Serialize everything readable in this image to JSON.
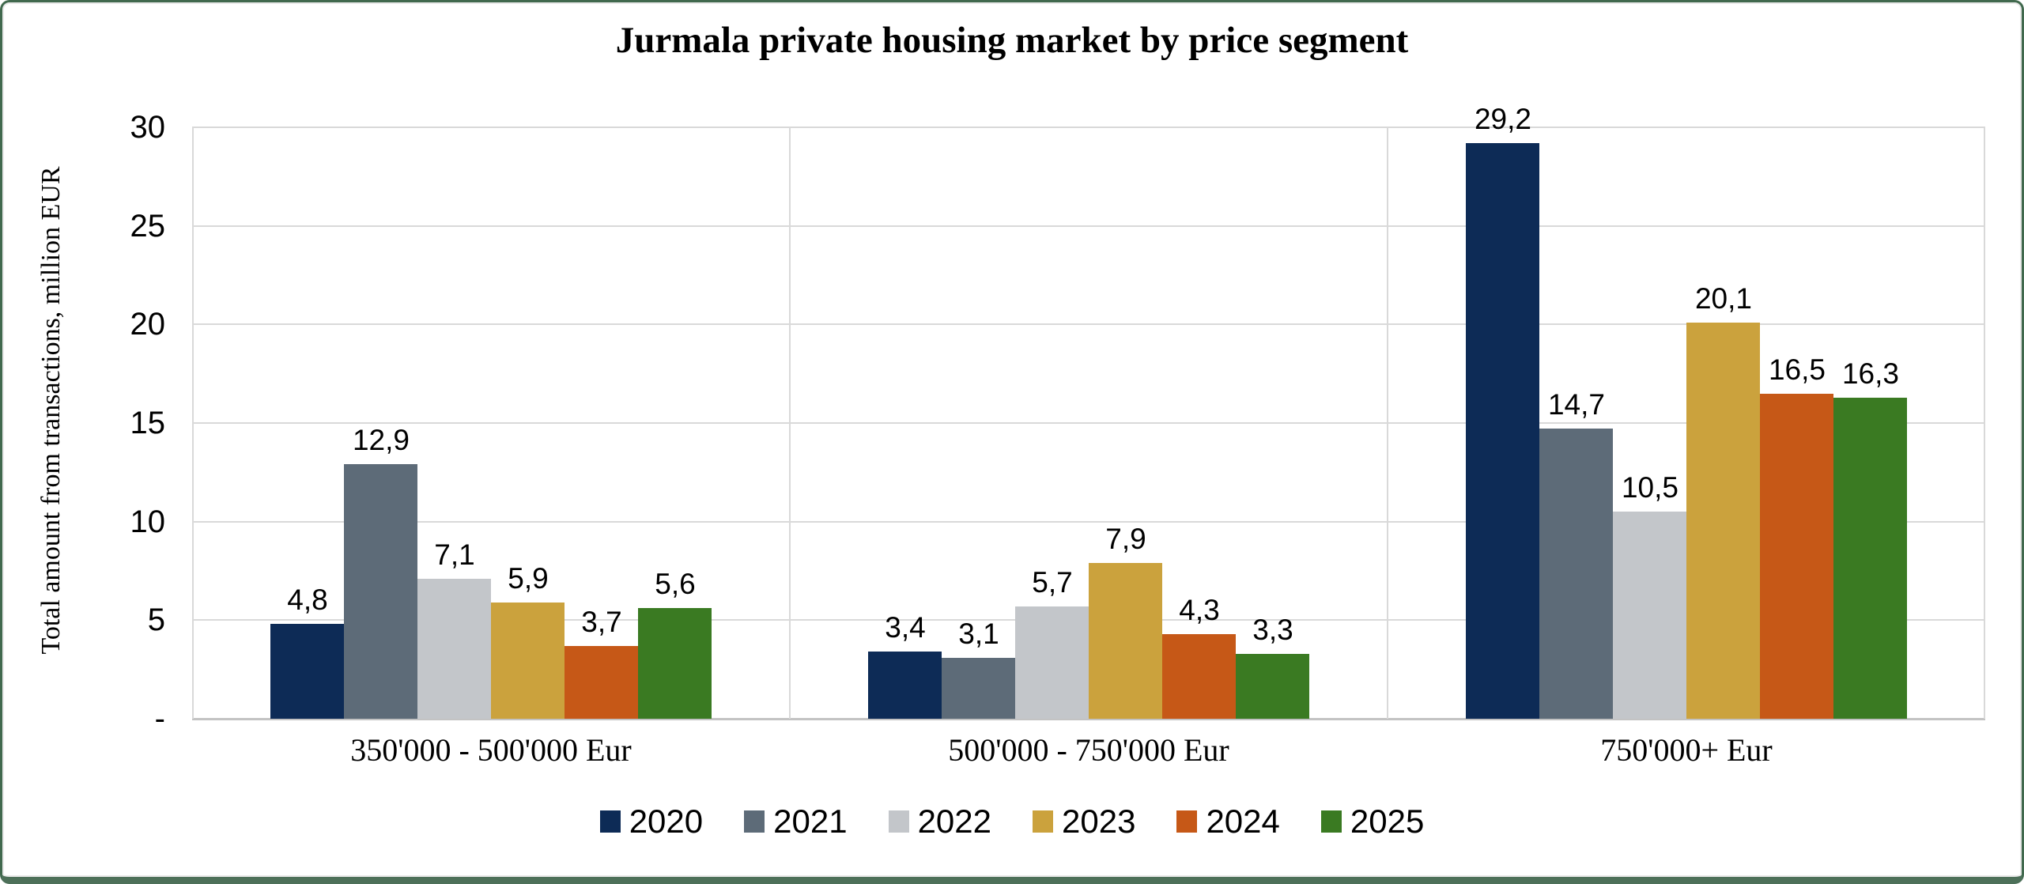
{
  "frame": {
    "border_color": "#41694e",
    "border_bottom_color": "#4d7059",
    "inner_line_color": "#e9e9e9",
    "background": "#ffffff"
  },
  "palette": {
    "gridline": "#d9d9d9",
    "axis_line": "#c3c3c3",
    "text": "#000000"
  },
  "chart_data": {
    "type": "bar",
    "title": "Jurmala private housing market by price segment",
    "ylabel": "Total amount from transactions, million EUR",
    "xlabel": "",
    "categories": [
      "350'000 - 500'000 Eur",
      "500'000 - 750'000 Eur",
      "750'000+ Eur"
    ],
    "series": [
      {
        "name": "2020",
        "color": "#0d2b56",
        "values": [
          4.8,
          3.4,
          29.2
        ],
        "labels": [
          "4,8",
          "3,4",
          "29,2"
        ]
      },
      {
        "name": "2021",
        "color": "#5d6b78",
        "values": [
          12.9,
          3.1,
          14.7
        ],
        "labels": [
          "12,9",
          "3,1",
          "14,7"
        ]
      },
      {
        "name": "2022",
        "color": "#c3c6ca",
        "values": [
          7.1,
          5.7,
          10.5
        ],
        "labels": [
          "7,1",
          "5,7",
          "10,5"
        ]
      },
      {
        "name": "2023",
        "color": "#cba23d",
        "values": [
          5.9,
          7.9,
          20.1
        ],
        "labels": [
          "5,9",
          "7,9",
          "20,1"
        ]
      },
      {
        "name": "2024",
        "color": "#c65817",
        "values": [
          3.7,
          4.3,
          16.5
        ],
        "labels": [
          "3,7",
          "4,3",
          "16,5"
        ]
      },
      {
        "name": "2025",
        "color": "#3a7a22",
        "values": [
          5.6,
          3.3,
          16.3
        ],
        "labels": [
          "5,6",
          "3,3",
          "16,3"
        ]
      }
    ],
    "ylim": [
      0,
      30
    ],
    "yticks": [
      {
        "value": 30,
        "label": "30"
      },
      {
        "value": 25,
        "label": "25"
      },
      {
        "value": 20,
        "label": "20"
      },
      {
        "value": 15,
        "label": "15"
      },
      {
        "value": 10,
        "label": "10"
      },
      {
        "value": 5,
        "label": "5"
      },
      {
        "value": 0,
        "label": "-"
      }
    ],
    "grid": true,
    "legend_position": "bottom"
  }
}
